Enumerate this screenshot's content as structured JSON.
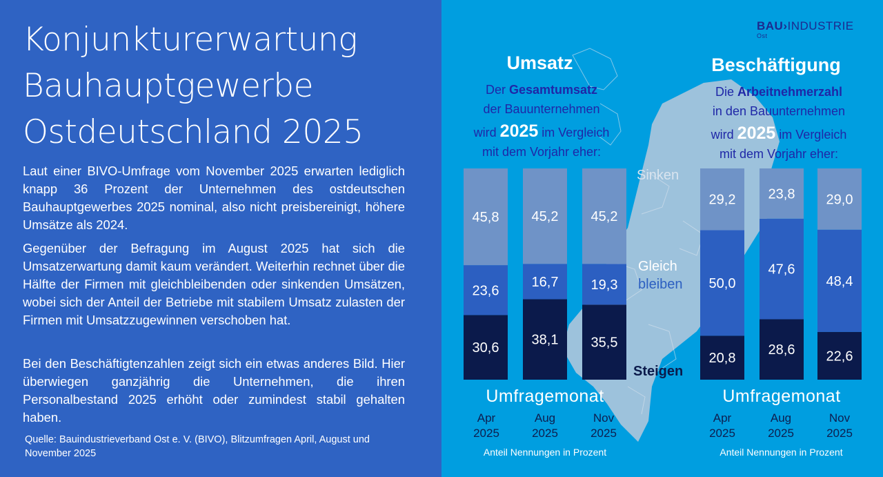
{
  "title": {
    "line1": "Konjunkturerwartung",
    "line2": "Bauhauptgewerbe",
    "line3": "Ostdeutschland 2025"
  },
  "paragraphs": [
    "Laut einer BIVO-Umfrage vom November 2025 erwarten lediglich knapp 36 Prozent der Unternehmen des ostdeutschen Bauhauptgewerbes 2025 nominal, also nicht preisbereinigt, höhere Umsätze als 2024.",
    "Gegenüber der Befragung im August 2025 hat sich die Umsatzerwartung damit kaum verändert. Weiterhin rechnet über die Hälfte der Firmen mit gleichbleibenden oder sinkenden Umsätzen, wobei sich der Anteil der Betriebe mit stabilem Umsatz zulasten der Firmen mit Umsatzzugewinnen verschoben hat.",
    "Bei den Beschäftigtenzahlen zeigt sich ein etwas anderes Bild. Hier überwiegen ganzjährig die Unternehmen, die ihren Personalbestand 2025 erhöht oder zumindest stabil gehalten haben."
  ],
  "source": "Quelle: Bauindustrieverband Ost e. V. (BIVO), Blitzumfragen April, August und November 2025",
  "logo": {
    "bau": "BAU",
    "industrie": "INDUSTRIE",
    "ost": "Ost"
  },
  "map_labels": {
    "sinken": "Sinken",
    "gleich1": "Gleich",
    "gleich2": "bleiben",
    "steigen": "Steigen"
  },
  "colors": {
    "sinken": "#6f93c7",
    "gleich": "#2c5fc1",
    "steigen": "#0b1a4b",
    "left_bg": "#2f63c3",
    "right_bg": "#009ee0",
    "accent_text": "#1f27a7"
  },
  "chart_data": [
    {
      "type": "bar",
      "stacked": true,
      "title": "Umsatz",
      "description": {
        "line1_pre": "Der ",
        "line1_bold": "Gesamtumsatz",
        "line2": "der Bauunternehmen",
        "line3_pre": "wird ",
        "line3_big": "2025",
        "line3_post": " im Vergleich",
        "line4": "mit dem Vorjahr eher:"
      },
      "xlabel": "Umfragemonat",
      "categories": [
        [
          "Apr",
          "2025"
        ],
        [
          "Aug",
          "2025"
        ],
        [
          "Nov",
          "2025"
        ]
      ],
      "series": [
        {
          "name": "Steigen",
          "values": [
            30.6,
            38.1,
            35.5
          ],
          "values_label": [
            "30,6",
            "38,1",
            "35,5"
          ]
        },
        {
          "name": "Gleich bleiben",
          "values": [
            23.6,
            16.7,
            19.3
          ],
          "values_label": [
            "23,6",
            "16,7",
            "19,3"
          ]
        },
        {
          "name": "Sinken",
          "values": [
            45.8,
            45.2,
            45.2
          ],
          "values_label": [
            "45,8",
            "45,2",
            "45,2"
          ]
        }
      ],
      "ylim": [
        0,
        100
      ],
      "note": "Anteil Nennungen in Prozent"
    },
    {
      "type": "bar",
      "stacked": true,
      "title": "Beschäftigung",
      "description": {
        "line1_pre": "Die ",
        "line1_bold": "Arbeitnehmerzahl",
        "line2": "in den Bauunternehmen",
        "line3_pre": "wird ",
        "line3_big": "2025",
        "line3_post": " im Vergleich",
        "line4": "mit dem Vorjahr eher:"
      },
      "xlabel": "Umfragemonat",
      "categories": [
        [
          "Apr",
          "2025"
        ],
        [
          "Aug",
          "2025"
        ],
        [
          "Nov",
          "2025"
        ]
      ],
      "series": [
        {
          "name": "Steigen",
          "values": [
            20.8,
            28.6,
            22.6
          ],
          "values_label": [
            "20,8",
            "28,6",
            "22,6"
          ]
        },
        {
          "name": "Gleich bleiben",
          "values": [
            50.0,
            47.6,
            48.4
          ],
          "values_label": [
            "50,0",
            "47,6",
            "48,4"
          ]
        },
        {
          "name": "Sinken",
          "values": [
            29.2,
            23.8,
            29.0
          ],
          "values_label": [
            "29,2",
            "23,8",
            "29,0"
          ]
        }
      ],
      "ylim": [
        0,
        100
      ],
      "note": "Anteil Nennungen in Prozent"
    }
  ]
}
